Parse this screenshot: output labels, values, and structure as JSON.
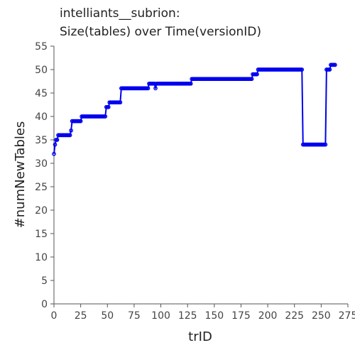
{
  "chart_data": {
    "type": "line",
    "title_line1": "intelliants__subrion:",
    "title_line2": "Size(tables) over Time(versionID)",
    "xlabel": "trID",
    "ylabel": "#numNewTables",
    "xlim": [
      0,
      275
    ],
    "ylim": [
      0,
      55
    ],
    "xticks": [
      0,
      25,
      50,
      75,
      100,
      125,
      150,
      175,
      200,
      225,
      250,
      275
    ],
    "yticks": [
      0,
      5,
      10,
      15,
      20,
      25,
      30,
      35,
      40,
      45,
      50,
      55
    ],
    "grid": false,
    "series_color": "#0000ee",
    "steps": [
      {
        "x0": 0,
        "x1": 0,
        "y": 32
      },
      {
        "x0": 1,
        "x1": 1,
        "y": 34
      },
      {
        "x0": 2,
        "x1": 2,
        "y": 35
      },
      {
        "x0": 3,
        "x1": 3,
        "y": 35
      },
      {
        "x0": 4,
        "x1": 15,
        "y": 36
      },
      {
        "x0": 16,
        "x1": 16,
        "y": 37
      },
      {
        "x0": 17,
        "x1": 25,
        "y": 39
      },
      {
        "x0": 26,
        "x1": 48,
        "y": 40
      },
      {
        "x0": 49,
        "x1": 51,
        "y": 42
      },
      {
        "x0": 52,
        "x1": 62,
        "y": 43
      },
      {
        "x0": 63,
        "x1": 88,
        "y": 46
      },
      {
        "x0": 89,
        "x1": 94,
        "y": 47
      },
      {
        "x0": 95,
        "x1": 95,
        "y": 46
      },
      {
        "x0": 96,
        "x1": 128,
        "y": 47
      },
      {
        "x0": 129,
        "x1": 185,
        "y": 48
      },
      {
        "x0": 186,
        "x1": 190,
        "y": 49
      },
      {
        "x0": 191,
        "x1": 232,
        "y": 50
      },
      {
        "x0": 233,
        "x1": 254,
        "y": 34
      },
      {
        "x0": 255,
        "x1": 258,
        "y": 50
      },
      {
        "x0": 259,
        "x1": 263,
        "y": 51
      }
    ]
  }
}
